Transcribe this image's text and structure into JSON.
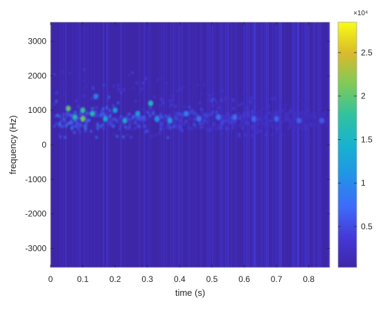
{
  "chart_data": [
    {
      "type": "heatmap",
      "title": "",
      "xlabel": "time (s)",
      "ylabel": "frequency (Hz)",
      "xlim": [
        0,
        0.865
      ],
      "ylim": [
        -3550,
        3550
      ],
      "xticks": [
        0,
        0.1,
        0.2,
        0.3,
        0.4,
        0.5,
        0.6,
        0.7,
        0.8
      ],
      "xtick_labels": [
        "0",
        "0.1",
        "0.2",
        "0.3",
        "0.4",
        "0.5",
        "0.6",
        "0.7",
        "0.8"
      ],
      "yticks": [
        -3000,
        -2000,
        -1000,
        0,
        1000,
        2000,
        3000
      ],
      "ytick_labels": [
        "-3000",
        "-2000",
        "-1000",
        "0",
        "1000",
        "2000",
        "3000"
      ],
      "colormap": "parula",
      "background_color": "#3d26a8",
      "grid": false,
      "colorbar": {
        "range": [
          300,
          28500
        ],
        "exponent_label": "×10⁴",
        "ticks": [
          0.5,
          1,
          1.5,
          2,
          2.5
        ],
        "tick_labels": [
          "0.5",
          "1",
          "1.5",
          "2",
          "2.5"
        ],
        "multiplier": 10000
      },
      "description_points": [
        {
          "t": 0.055,
          "f": 1050,
          "value": 20000
        },
        {
          "t": 0.075,
          "f": 800,
          "value": 16000
        },
        {
          "t": 0.1,
          "f": 1000,
          "value": 18000
        },
        {
          "t": 0.1,
          "f": 750,
          "value": 21000
        },
        {
          "t": 0.13,
          "f": 900,
          "value": 16000
        },
        {
          "t": 0.14,
          "f": 1400,
          "value": 9000
        },
        {
          "t": 0.17,
          "f": 750,
          "value": 14000
        },
        {
          "t": 0.2,
          "f": 1000,
          "value": 12000
        },
        {
          "t": 0.23,
          "f": 700,
          "value": 13000
        },
        {
          "t": 0.27,
          "f": 900,
          "value": 12000
        },
        {
          "t": 0.31,
          "f": 1200,
          "value": 16000
        },
        {
          "t": 0.33,
          "f": 750,
          "value": 11000
        },
        {
          "t": 0.37,
          "f": 700,
          "value": 12000
        },
        {
          "t": 0.42,
          "f": 900,
          "value": 9000
        },
        {
          "t": 0.46,
          "f": 750,
          "value": 8000
        },
        {
          "t": 0.52,
          "f": 800,
          "value": 8000
        },
        {
          "t": 0.57,
          "f": 800,
          "value": 7500
        },
        {
          "t": 0.63,
          "f": 750,
          "value": 7000
        },
        {
          "t": 0.7,
          "f": 750,
          "value": 7000
        },
        {
          "t": 0.77,
          "f": 700,
          "value": 6500
        },
        {
          "t": 0.84,
          "f": 700,
          "value": 6000
        }
      ]
    }
  ]
}
